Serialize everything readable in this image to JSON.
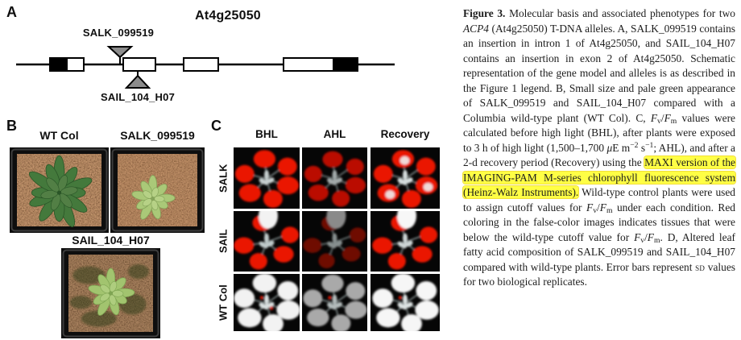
{
  "figure": {
    "panel_a": {
      "label": "A",
      "gene_title": "At4g25050",
      "insertion_top_label": "SALK_099519",
      "insertion_bottom_label": "SAIL_104_H07"
    },
    "panel_b": {
      "label": "B",
      "photo_labels": [
        "WT Col",
        "SALK_099519",
        "SAIL_104_H07"
      ]
    },
    "panel_c": {
      "label": "C",
      "column_headers": [
        "BHL",
        "AHL",
        "Recovery"
      ],
      "row_labels": [
        "SALK",
        "SAIL",
        "WT Col"
      ]
    }
  },
  "caption": {
    "segments": [
      {
        "t": "Figure 3. ",
        "b": 1
      },
      {
        "t": "Molecular basis and associated phenotypes for two "
      },
      {
        "t": "ACP4",
        "i": 1
      },
      {
        "t": " (At4g25050) T-DNA alleles. A, SALK_099519 contains an insertion in intron 1 of At4g25050, and SAIL_104_H07 contains an insertion in exon 2 of At4g25050. Schematic representation of the gene model and alleles is as described in the Figure 1 legend. B, Small size and pale green appearance of SALK_099519 and SAIL_104_H07 compared with a Columbia wild-type plant (WT Col). C, "
      },
      {
        "t": "F",
        "i": 1
      },
      {
        "t": "v",
        "sub": 1
      },
      {
        "t": "/"
      },
      {
        "t": "F",
        "i": 1
      },
      {
        "t": "m",
        "sub": 1
      },
      {
        "t": " values were calculated before high light (BHL), after plants were exposed to 3 h of high light (1,500–1,700 "
      },
      {
        "t": "μ",
        "i": 1
      },
      {
        "t": "E m"
      },
      {
        "t": "−2",
        "sup": 1
      },
      {
        "t": " s"
      },
      {
        "t": "−1",
        "sup": 1
      },
      {
        "t": "; AHL), and after a 2-d recovery period (Recovery) using the "
      },
      {
        "t": "MAXI version of the IMAGING-PAM M-series chlorophyll fluorescence system (Heinz-Walz Instruments).",
        "hl": 1
      },
      {
        "t": " Wild-type control plants were used to assign cutoff values for "
      },
      {
        "t": "F",
        "i": 1
      },
      {
        "t": "v",
        "sub": 1
      },
      {
        "t": "/"
      },
      {
        "t": "F",
        "i": 1
      },
      {
        "t": "m",
        "sub": 1
      },
      {
        "t": " under each condition. Red coloring in the false-color images indicates tissues that were below the wild-type cutoff value for "
      },
      {
        "t": "F",
        "i": 1
      },
      {
        "t": "v",
        "sub": 1
      },
      {
        "t": "/"
      },
      {
        "t": "F",
        "i": 1
      },
      {
        "t": "m",
        "sub": 1
      },
      {
        "t": ". D, Altered leaf fatty acid composition of SALK_099519 and SAIL_104_H07 compared with wild-type plants. Error bars represent "
      },
      {
        "t": "SD",
        "sc": 1
      },
      {
        "t": " values for two biological replicates."
      }
    ]
  },
  "colors": {
    "highlight_yellow": "#ffff45",
    "fluorescence_red": "#ea1200",
    "wildtype_green": "#44793c",
    "mutant_pale_green": "#a8c878",
    "soil_brown": "#5d3b26",
    "insertion_triangle_gray": "#8c8c8c"
  }
}
